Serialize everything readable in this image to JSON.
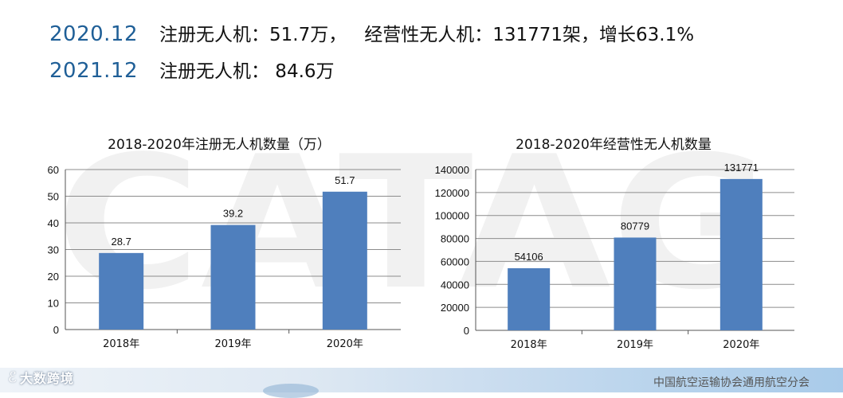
{
  "headlines": {
    "row1": {
      "year": "2020.12",
      "registered": "注册无人机：51.7万，",
      "commercial": "经营性无人机：131771架，增长63.1%"
    },
    "row2": {
      "year": "2021.12",
      "registered": "注册无人机： 84.6万"
    }
  },
  "watermark_text": "CATAG",
  "branding": {
    "logo_text": "大数跨境",
    "organization": "中国航空运输协会通用航空分会"
  },
  "colors": {
    "bar": "#4f7fbd",
    "year_text": "#1f5f97"
  },
  "chart_data": [
    {
      "type": "bar",
      "title": "2018-2020年注册无人机数量（万）",
      "categories": [
        "2018年",
        "2019年",
        "2020年"
      ],
      "values": [
        28.7,
        39.2,
        51.7
      ],
      "data_labels": [
        "28.7",
        "39.2",
        "51.7"
      ],
      "ylim": [
        0,
        60
      ],
      "yticks": [
        0,
        10,
        20,
        30,
        40,
        50,
        60
      ],
      "grid": true,
      "legend": "none",
      "xlabel": "",
      "ylabel": ""
    },
    {
      "type": "bar",
      "title": "2018-2020年经营性无人机数量",
      "categories": [
        "2018年",
        "2019年",
        "2020年"
      ],
      "values": [
        54106,
        80779,
        131771
      ],
      "data_labels": [
        "54106",
        "80779",
        "131771"
      ],
      "ylim": [
        0,
        140000
      ],
      "yticks": [
        0,
        20000,
        40000,
        60000,
        80000,
        100000,
        120000,
        140000
      ],
      "grid": true,
      "legend": "none",
      "xlabel": "",
      "ylabel": ""
    }
  ]
}
